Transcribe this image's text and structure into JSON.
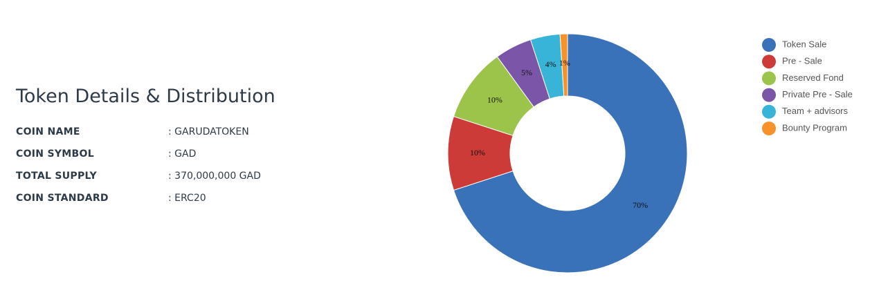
{
  "details": {
    "title": "Token Details & Distribution",
    "rows": [
      {
        "label": "COIN NAME",
        "value": ": GARUDATOKEN"
      },
      {
        "label": "COIN SYMBOL",
        "value": ": GAD"
      },
      {
        "label": "TOTAL SUPPLY",
        "value": ": 370,000,000 GAD"
      },
      {
        "label": "COIN STANDARD",
        "value": ": ERC20"
      }
    ]
  },
  "chart_data": {
    "type": "donut",
    "categories": [
      "Token Sale",
      "Pre - Sale",
      "Reserved Fond",
      "Private Pre - Sale",
      "Team + advisors",
      "Bounty Program"
    ],
    "values": [
      70,
      10,
      10,
      5,
      4,
      1
    ],
    "value_labels": [
      "70%",
      "10%",
      "10%",
      "5%",
      "4%",
      "1%"
    ],
    "colors": [
      "#3a72b9",
      "#cc3b37",
      "#9dc44a",
      "#7b56a8",
      "#38b4d8",
      "#f7922b"
    ],
    "legend": "right"
  }
}
